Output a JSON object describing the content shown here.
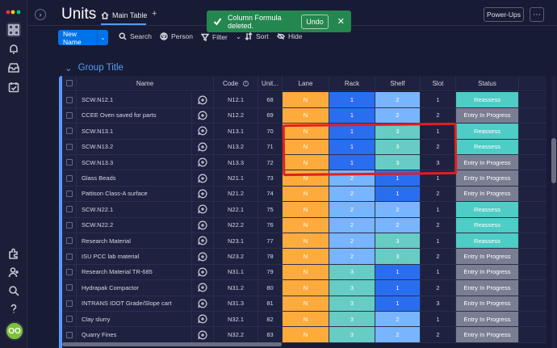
{
  "board": {
    "title": "Units",
    "tab_label": "Main Table",
    "add_tab": "+"
  },
  "toast": {
    "message": "Column Formula deleted.",
    "undo_label": "Undo",
    "close": "✕"
  },
  "header_buttons": {
    "powerups": "Power-Ups",
    "more": "⋯"
  },
  "toolbar": {
    "new_item": "New Name",
    "new_item_caret": "⌄",
    "search": "Search",
    "person": "Person",
    "filter": "Filter",
    "filter_caret": "⌄",
    "sort": "Sort",
    "hide": "Hide"
  },
  "group": {
    "title": "Group Title",
    "chevron": "⌄"
  },
  "columns": {
    "name": "Name",
    "code": "Code",
    "unit": "Unit...",
    "lane": "Lane",
    "rack": "Rack",
    "shelf": "Shelf",
    "slot": "Slot",
    "status": "Status"
  },
  "user": {
    "initials": "OO"
  },
  "colors": {
    "accent": "#579bfc",
    "toast": "#258750",
    "lane": "#fdab3d",
    "reassess": "#4eccc6",
    "entry": "#797e93",
    "highlight": "#e01f1f"
  },
  "rows": [
    {
      "name": "SCW.N12.1",
      "code": "N12.1",
      "unit": "68",
      "lane": "N",
      "rack": "1",
      "shelf": "2",
      "slot": "1",
      "status": "Reassess"
    },
    {
      "name": "CCEE Oven saved for parts",
      "code": "N12.2",
      "unit": "69",
      "lane": "N",
      "rack": "1",
      "shelf": "2",
      "slot": "2",
      "status": "Entry In Progress"
    },
    {
      "name": "SCW.N13.1",
      "code": "N13.1",
      "unit": "70",
      "lane": "N",
      "rack": "1",
      "shelf": "3",
      "slot": "1",
      "status": "Reassess"
    },
    {
      "name": "SCW.N13.2",
      "code": "N13.2",
      "unit": "71",
      "lane": "N",
      "rack": "1",
      "shelf": "3",
      "slot": "2",
      "status": "Reassess"
    },
    {
      "name": "SCW.N13.3",
      "code": "N13.3",
      "unit": "72",
      "lane": "N",
      "rack": "1",
      "shelf": "3",
      "slot": "3",
      "status": "Entry In Progress"
    },
    {
      "name": "Glass Beads",
      "code": "N21.1",
      "unit": "73",
      "lane": "N",
      "rack": "2",
      "shelf": "1",
      "slot": "1",
      "status": "Entry In Progress"
    },
    {
      "name": "Pattison Class-A surface",
      "code": "N21.2",
      "unit": "74",
      "lane": "N",
      "rack": "2",
      "shelf": "1",
      "slot": "2",
      "status": "Entry In Progress"
    },
    {
      "name": "SCW.N22.1",
      "code": "N22.1",
      "unit": "75",
      "lane": "N",
      "rack": "2",
      "shelf": "2",
      "slot": "1",
      "status": "Reassess"
    },
    {
      "name": "SCW.N22.2",
      "code": "N22.2",
      "unit": "76",
      "lane": "N",
      "rack": "2",
      "shelf": "2",
      "slot": "2",
      "status": "Reassess"
    },
    {
      "name": "Research Material",
      "code": "N23.1",
      "unit": "77",
      "lane": "N",
      "rack": "2",
      "shelf": "3",
      "slot": "1",
      "status": "Reassess"
    },
    {
      "name": "ISU PCC lab material",
      "code": "N23.2",
      "unit": "78",
      "lane": "N",
      "rack": "2",
      "shelf": "3",
      "slot": "2",
      "status": "Entry In Progress"
    },
    {
      "name": "Research Material TR-685",
      "code": "N31.1",
      "unit": "79",
      "lane": "N",
      "rack": "3",
      "shelf": "1",
      "slot": "1",
      "status": "Entry In Progress"
    },
    {
      "name": "Hydrapak Compactor",
      "code": "N31.2",
      "unit": "80",
      "lane": "N",
      "rack": "3",
      "shelf": "1",
      "slot": "2",
      "status": "Entry In Progress"
    },
    {
      "name": "INTRANS IDOT Grade/Slope cart",
      "code": "N31.3",
      "unit": "81",
      "lane": "N",
      "rack": "3",
      "shelf": "1",
      "slot": "3",
      "status": "Entry In Progress"
    },
    {
      "name": "Clay slurry",
      "code": "N32.1",
      "unit": "82",
      "lane": "N",
      "rack": "3",
      "shelf": "2",
      "slot": "1",
      "status": "Entry In Progress"
    },
    {
      "name": "Quarry Fines",
      "code": "N32.2",
      "unit": "83",
      "lane": "N",
      "rack": "3",
      "shelf": "2",
      "slot": "2",
      "status": "Entry In Progress"
    }
  ]
}
